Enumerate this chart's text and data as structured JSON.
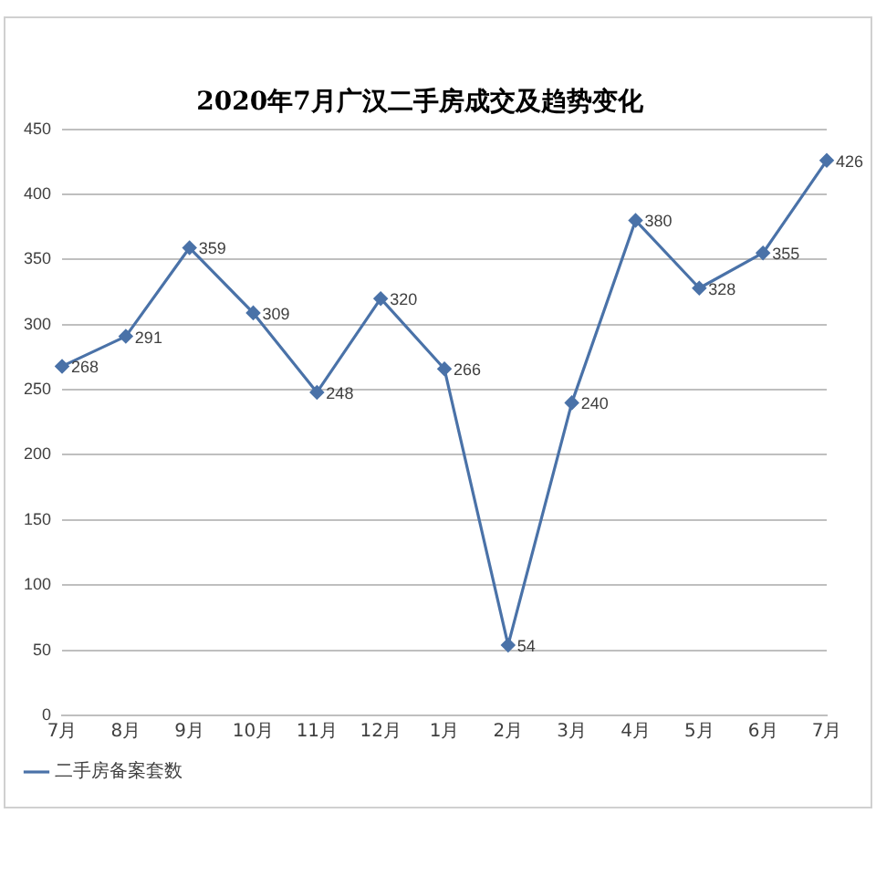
{
  "chart_data": {
    "type": "line",
    "title": "2020年7月广汉二手房成交及趋势变化",
    "categories": [
      "7月",
      "8月",
      "9月",
      "10月",
      "11月",
      "12月",
      "1月",
      "2月",
      "3月",
      "4月",
      "5月",
      "6月",
      "7月"
    ],
    "series": [
      {
        "name": "二手房备案套数",
        "color": "#4a72a8",
        "values": [
          268,
          291,
          359,
          309,
          248,
          320,
          266,
          54,
          240,
          380,
          328,
          355,
          426
        ]
      }
    ],
    "ylim": [
      0,
      450
    ],
    "yticks": [
      0,
      50,
      100,
      150,
      200,
      250,
      300,
      350,
      400,
      450
    ],
    "grid": "y",
    "legend": "bottom left",
    "marker": "diamond",
    "line_style": "solid",
    "data_labels": true
  }
}
